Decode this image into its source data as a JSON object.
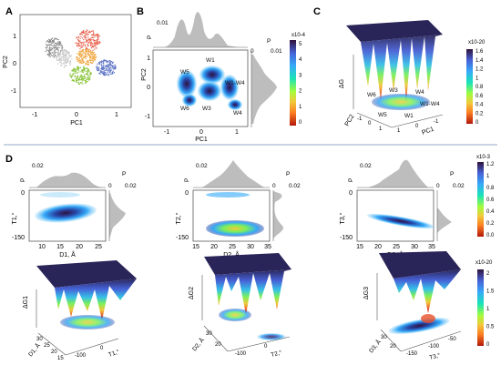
{
  "panels": {
    "A": {
      "letter": "A",
      "xlabel": "PC1",
      "ylabel": "PC2",
      "xticks": [
        "-1",
        "0",
        "1"
      ],
      "yticks": [
        "1",
        "0",
        "-1"
      ]
    },
    "B": {
      "letter": "B",
      "xlabel": "PC1",
      "ylabel": "PC2",
      "xticks": [
        "-1",
        "0",
        "1"
      ],
      "yticks": [
        "1",
        "0",
        "-1"
      ],
      "top_hist": {
        "p_label": "P",
        "tick": "0.01"
      },
      "right_hist": {
        "p_label": "P",
        "ticks": [
          "0",
          "0.01"
        ]
      },
      "states": [
        "W1",
        "W5",
        "W1-W4",
        "W6",
        "W3",
        "W4"
      ],
      "colorbar": {
        "exponent": "x10-4",
        "ticks": [
          "5",
          "4",
          "3",
          "2",
          "1",
          "0"
        ]
      }
    },
    "C": {
      "letter": "C",
      "zlabel": "ΔG",
      "xlabel": "PC1",
      "ylabel": "PC2",
      "xticks": [
        "1",
        "0",
        "-1"
      ],
      "yticks": [
        "-1",
        "0",
        "1"
      ],
      "states": [
        "W6",
        "W3",
        "W4",
        "W5",
        "W1",
        "W1-W4"
      ],
      "colorbar": {
        "exponent": "x10-20",
        "ticks": [
          "1.6",
          "1.4",
          "1.2",
          "1",
          "0.8",
          "0.6",
          "0.4",
          "0.2",
          "0"
        ]
      }
    },
    "D": {
      "letter": "D",
      "hists": [
        {
          "id": "1",
          "xlabel": "D1, Å",
          "ylabel": "T1,°",
          "xticks": [
            "10",
            "15",
            "20",
            "25"
          ],
          "yticks": [
            "0",
            "-150"
          ],
          "top_p": {
            "p_label": "P",
            "tick": "0.02"
          },
          "right_p": {
            "p_label": "P",
            "ticks": [
              "0",
              "0.02"
            ]
          }
        },
        {
          "id": "2",
          "xlabel": "D2, Å",
          "ylabel": "T2,°",
          "xticks": [
            "15",
            "20",
            "25",
            "30",
            "35"
          ],
          "yticks": [
            "0",
            "-150"
          ],
          "top_p": {
            "p_label": "P",
            "tick": "0.02"
          },
          "right_p": {
            "p_label": "P",
            "ticks": [
              "0",
              "0.02"
            ]
          }
        },
        {
          "id": "3",
          "xlabel": "D3, Å",
          "ylabel": "T3,°",
          "xticks": [
            "15",
            "20",
            "25",
            "30",
            "35"
          ],
          "yticks": [
            "0",
            "-150"
          ],
          "top_p": {
            "p_label": "P",
            "tick": "0.02"
          },
          "right_p": {
            "p_label": "P",
            "ticks": [
              "0",
              "0.02"
            ]
          }
        }
      ],
      "colorbar_top": {
        "exponent": "x10-3",
        "ticks": [
          "1.2",
          "1",
          "0.8",
          "0.6",
          "0.4",
          "0.2",
          "0.0"
        ]
      },
      "surfaces": [
        {
          "zlabel": "ΔG1",
          "xlabel": "D1, Å",
          "ylabel": "T1,°",
          "xticks": [
            "30",
            "25",
            "20",
            "15"
          ],
          "yticks": [
            "-100",
            "0"
          ]
        },
        {
          "zlabel": "ΔG2",
          "xlabel": "D2, Å",
          "ylabel": "T2,°",
          "xticks": [
            "30",
            "20"
          ],
          "yticks": [
            "-100",
            "0"
          ]
        },
        {
          "zlabel": "ΔG3",
          "xlabel": "D3, Å",
          "ylabel": "T3,°",
          "xticks": [
            "30",
            "20"
          ],
          "yticks": [
            "-150",
            "-100",
            "-50"
          ]
        }
      ],
      "colorbar_bottom": {
        "exponent": "x10-20",
        "ticks": [
          "2",
          "1.5",
          "1",
          "0.5",
          "0"
        ]
      }
    }
  },
  "colors": {
    "cluster_gray": "#8a8a8a",
    "cluster_lightgray": "#c9c9c9",
    "cluster_red": "#e8604c",
    "cluster_orange": "#f0a43a",
    "cluster_green": "#8cc63f",
    "cluster_blue": "#5b73c4",
    "hist_fill": "#bdbdbd",
    "surface_top": "#2a2559",
    "divider": "#6f8fb0"
  }
}
